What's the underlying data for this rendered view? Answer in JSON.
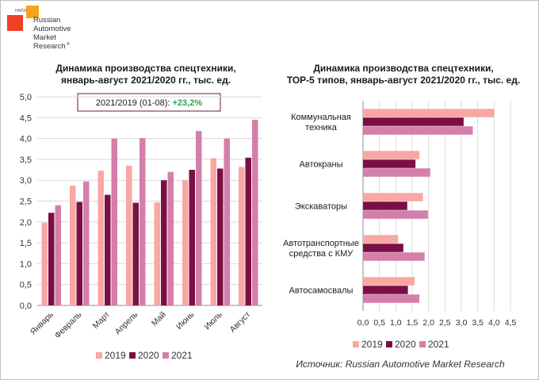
{
  "logo": {
    "badge": "НАПИ",
    "lines": [
      "Russian",
      "Automotive",
      "Market",
      "Research"
    ],
    "mark": "®"
  },
  "charts": [
    {
      "title_lines": [
        "Динамика производства спецтехники,",
        "январь-август 2021/2020 гг., тыс. ед."
      ],
      "annotation": {
        "prefix": "2021/2019 (01-08): ",
        "value": "+23,2%"
      }
    },
    {
      "title_lines": [
        "Динамика производства спецтехники,",
        "ТОР-5 типов, январь-август 2021/2020 гг., тыс. ед."
      ]
    }
  ],
  "source": "Источник: Russian Automotive Market Research",
  "colors": {
    "2019": "#f9a7a4",
    "2020": "#7b0f45",
    "2021": "#d47fab",
    "annotation_value": "#2e9e4f",
    "frame": "#6b1a44"
  },
  "chart_data": [
    {
      "type": "bar",
      "orientation": "vertical",
      "categories": [
        "Январь",
        "Февраль",
        "Март",
        "Апрель",
        "Май",
        "Июнь",
        "Июль",
        "Август"
      ],
      "series": [
        {
          "name": "2019",
          "values": [
            1.98,
            2.87,
            3.23,
            3.35,
            2.47,
            3.0,
            3.53,
            3.32
          ]
        },
        {
          "name": "2020",
          "values": [
            2.22,
            2.48,
            2.65,
            2.46,
            3.0,
            3.25,
            3.28,
            3.54
          ]
        },
        {
          "name": "2021",
          "values": [
            2.4,
            2.97,
            4.0,
            4.01,
            3.2,
            4.18,
            4.0,
            4.45
          ]
        }
      ],
      "ylim": [
        0,
        5
      ],
      "yticks": [
        "0,0",
        "0,5",
        "1,0",
        "1,5",
        "2,0",
        "2,5",
        "3,0",
        "3,5",
        "4,0",
        "4,5",
        "5,0"
      ],
      "grid": true,
      "legend": "bottom"
    },
    {
      "type": "bar",
      "orientation": "horizontal",
      "categories": [
        [
          "Коммунальная",
          "техника"
        ],
        [
          "Автокраны"
        ],
        [
          "Экскаваторы"
        ],
        [
          "Автотранспортные",
          "средства с КМУ"
        ],
        [
          "Автосамосвалы"
        ]
      ],
      "series": [
        {
          "name": "2019",
          "values": [
            4.0,
            1.72,
            1.83,
            1.07,
            1.57
          ]
        },
        {
          "name": "2020",
          "values": [
            3.07,
            1.6,
            1.35,
            1.23,
            1.37
          ]
        },
        {
          "name": "2021",
          "values": [
            3.35,
            2.05,
            1.98,
            1.88,
            1.72
          ]
        }
      ],
      "xlim": [
        0,
        4.5
      ],
      "xticks": [
        "0,0",
        "0,5",
        "1,0",
        "1,5",
        "2,0",
        "2,5",
        "3,0",
        "3,5",
        "4,0",
        "4,5"
      ],
      "grid": true,
      "legend": "bottom"
    }
  ]
}
